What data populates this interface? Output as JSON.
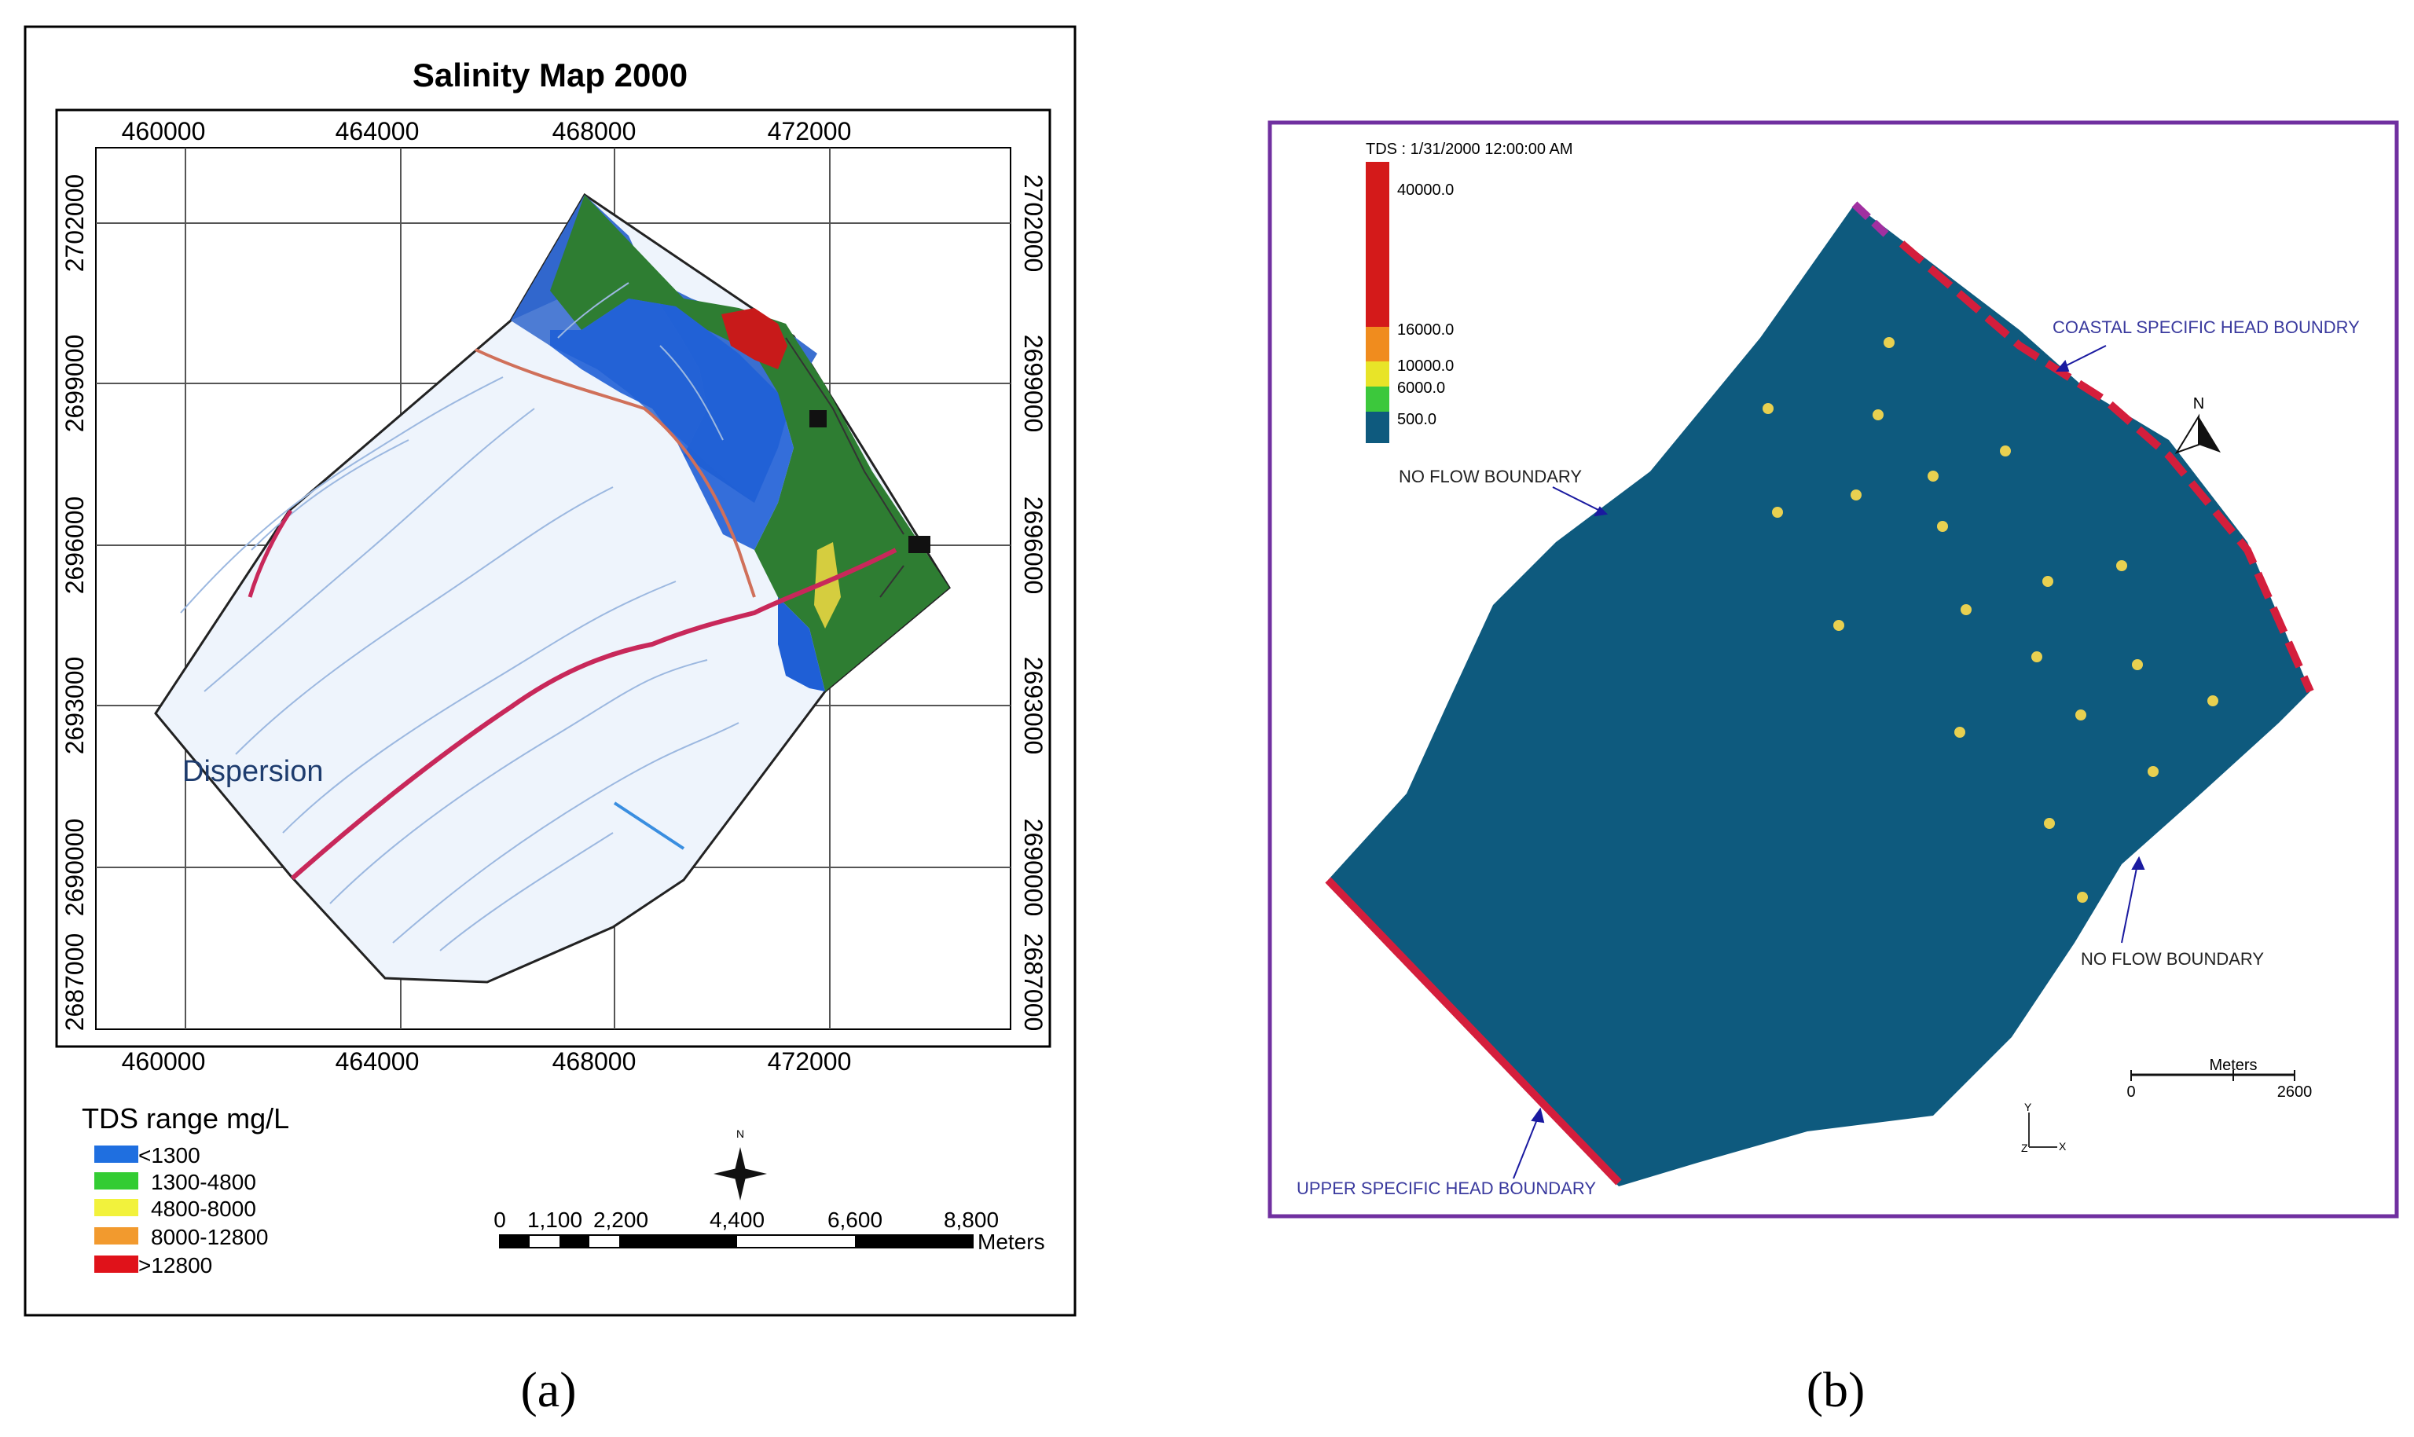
{
  "panel_a": {
    "title": "Salinity Map 2000",
    "x_ticks": [
      "460000",
      "464000",
      "468000",
      "472000"
    ],
    "y_ticks": [
      "2702000",
      "2699000",
      "2696000",
      "2693000",
      "2690000",
      "2687000"
    ],
    "dispersion_label": "Dispersion",
    "legend_title": "TDS range mg/L",
    "legend": [
      {
        "label": "<1300",
        "color": "#1f6fe0"
      },
      {
        "label": "1300-4800",
        "color": "#33cc33"
      },
      {
        "label": "4800-8000",
        "color": "#f2f23c"
      },
      {
        "label": "8000-12800",
        "color": "#f29a2e"
      },
      {
        "label": ">12800",
        "color": "#e0121a"
      }
    ],
    "scale_labels": [
      "0",
      "1,100",
      "2,200",
      "4,400",
      "6,600",
      "8,800"
    ],
    "scale_unit": "Meters",
    "north_label": "N",
    "caption": "(a)"
  },
  "panel_b": {
    "colorbar_title": "TDS : 1/31/2000 12:00:00 AM",
    "colorbar_ticks": [
      "40000.0",
      "16000.0",
      "10000.0",
      "6000.0",
      "500.0"
    ],
    "labels": {
      "coastal": "COASTAL SPECIFIC HEAD BOUNDRY",
      "no_flow_top": "NO FLOW BOUNDARY",
      "no_flow_right": "NO FLOW BOUNDARY",
      "upper": "UPPER SPECIFIC HEAD BOUNDARY"
    },
    "scale_title": "Meters",
    "scale_labels": [
      "0",
      "2600"
    ],
    "north_label": "N",
    "axis_y": "Y",
    "axis_x": "X",
    "axis_z": "Z",
    "caption": "(b)",
    "colors": {
      "domain": "#0e5a7e",
      "boundary_red": "#d41e3c",
      "border": "#7030a0",
      "well": "#e8d050"
    }
  }
}
